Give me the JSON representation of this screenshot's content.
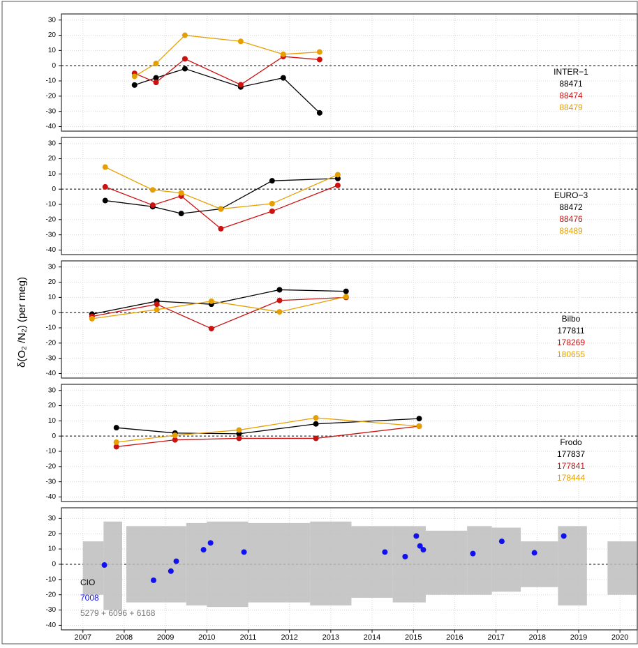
{
  "y_label": "δ(O₂ /N₂) (per meg)",
  "chart_data": [
    {
      "type": "line",
      "legend_title": "INTER−1",
      "legend": "right",
      "grid": true,
      "hline": 0,
      "xlim": [
        2006.48,
        2020.42
      ],
      "xticks": [
        2007,
        2008,
        2009,
        2010,
        2011,
        2012,
        2013,
        2014,
        2015,
        2016,
        2017,
        2018,
        2019,
        2020
      ],
      "ylim": [
        -43,
        34
      ],
      "yticks": [
        -40,
        -30,
        -20,
        -10,
        0,
        10,
        20,
        30
      ],
      "x": [
        2008.25,
        2008.77,
        2009.47,
        2010.82,
        2011.85,
        2012.73
      ],
      "series": [
        {
          "name": "88471",
          "color": "#000000",
          "values": [
            -12.7,
            -8,
            -2,
            -14,
            -8,
            -31
          ]
        },
        {
          "name": "88474",
          "color": "#cc1111",
          "values": [
            -5,
            -11,
            4.5,
            -12.5,
            6,
            4
          ]
        },
        {
          "name": "88479",
          "color": "#e69f00",
          "values": [
            -7,
            1.5,
            20,
            16,
            7.5,
            9
          ]
        }
      ]
    },
    {
      "type": "line",
      "legend_title": "EURO−3",
      "legend": "right",
      "grid": true,
      "hline": 0,
      "xlim": [
        2006.48,
        2020.42
      ],
      "xticks": [
        2007,
        2008,
        2009,
        2010,
        2011,
        2012,
        2013,
        2014,
        2015,
        2016,
        2017,
        2018,
        2019,
        2020
      ],
      "ylim": [
        -43,
        34
      ],
      "yticks": [
        -40,
        -30,
        -20,
        -10,
        0,
        10,
        20,
        30
      ],
      "x": [
        2007.54,
        2008.69,
        2009.38,
        2010.34,
        2011.58,
        2013.17
      ],
      "series": [
        {
          "name": "88472",
          "color": "#000000",
          "values": [
            -7.5,
            -11.5,
            -16,
            -13,
            5.5,
            7
          ]
        },
        {
          "name": "88476",
          "color": "#cc1111",
          "values": [
            1.5,
            -10.5,
            -4.5,
            -26,
            -14.5,
            2.5
          ]
        },
        {
          "name": "88489",
          "color": "#e69f00",
          "values": [
            14.5,
            -0.5,
            -2.5,
            -13,
            -9.5,
            9.5
          ]
        }
      ]
    },
    {
      "type": "line",
      "legend_title": "Bilbo",
      "legend": "right",
      "grid": true,
      "hline": 0,
      "xlim": [
        2006.48,
        2020.42
      ],
      "xticks": [
        2007,
        2008,
        2009,
        2010,
        2011,
        2012,
        2013,
        2014,
        2015,
        2016,
        2017,
        2018,
        2019,
        2020
      ],
      "ylim": [
        -43,
        34
      ],
      "yticks": [
        -40,
        -30,
        -20,
        -10,
        0,
        10,
        20,
        30
      ],
      "x": [
        2007.22,
        2008.79,
        2010.11,
        2011.76,
        2013.37
      ],
      "series": [
        {
          "name": "177811",
          "color": "#000000",
          "values": [
            -1,
            7.5,
            5.5,
            15,
            14
          ]
        },
        {
          "name": "178269",
          "color": "#cc1111",
          "values": [
            -2.5,
            5.5,
            -10.5,
            8,
            10
          ]
        },
        {
          "name": "180655",
          "color": "#e69f00",
          "values": [
            -4,
            2,
            7.5,
            0.5,
            10.5
          ]
        }
      ]
    },
    {
      "type": "line",
      "legend_title": "Frodo",
      "legend": "right",
      "grid": true,
      "hline": 0,
      "xlim": [
        2006.48,
        2020.42
      ],
      "xticks": [
        2007,
        2008,
        2009,
        2010,
        2011,
        2012,
        2013,
        2014,
        2015,
        2016,
        2017,
        2018,
        2019,
        2020
      ],
      "ylim": [
        -43,
        34
      ],
      "yticks": [
        -40,
        -30,
        -20,
        -10,
        0,
        10,
        20,
        30
      ],
      "x": [
        2007.81,
        2009.23,
        2010.78,
        2012.64,
        2015.14
      ],
      "series": [
        {
          "name": "177837",
          "color": "#000000",
          "values": [
            5.5,
            2,
            1.5,
            8,
            11.5
          ]
        },
        {
          "name": "177841",
          "color": "#cc1111",
          "values": [
            -7,
            -2.5,
            -1.5,
            -1.5,
            6.5
          ]
        },
        {
          "name": "178444",
          "color": "#e69f00",
          "values": [
            -4,
            0.5,
            4,
            12,
            6.5
          ]
        }
      ]
    },
    {
      "type": "scatter",
      "legend_title": "CIO",
      "legend": "bottom left",
      "grid": true,
      "hline": 0,
      "xlim": [
        2006.48,
        2020.42
      ],
      "xticks": [
        2007,
        2008,
        2009,
        2010,
        2011,
        2012,
        2013,
        2014,
        2015,
        2016,
        2017,
        2018,
        2019,
        2020
      ],
      "ylim": [
        -43,
        37
      ],
      "yticks": [
        -40,
        -30,
        -20,
        -10,
        0,
        10,
        20,
        30
      ],
      "series": [
        {
          "name": "7008",
          "color": "#1111ee",
          "x": [
            2007.52,
            2008.71,
            2009.13,
            2009.26,
            2009.92,
            2010.09,
            2010.9,
            2014.31,
            2014.8,
            2015.07,
            2015.16,
            2015.24,
            2016.44,
            2017.14,
            2017.93,
            2018.64
          ],
          "values": [
            -0.5,
            -10.5,
            -4.5,
            2,
            9.5,
            14,
            8,
            8,
            5,
            18.5,
            12,
            9.5,
            7,
            15,
            7.5,
            18.5
          ]
        },
        {
          "name": "5279 + 6096 + 6168",
          "color": "#bdbdbd",
          "x_start": [
            2007.0,
            2007.5,
            2008.05,
            2009.5,
            2010.0,
            2011.0,
            2012.5,
            2013.5,
            2014.5,
            2015.3,
            2016.3,
            2016.9,
            2017.6,
            2018.5,
            2019.7
          ],
          "x_end": [
            2007.5,
            2007.95,
            2009.5,
            2010.0,
            2011.0,
            2012.5,
            2013.5,
            2014.5,
            2015.3,
            2016.3,
            2016.9,
            2017.6,
            2018.5,
            2019.2,
            2020.4
          ],
          "low": [
            -20,
            -30,
            -25,
            -27,
            -28,
            -25,
            -27,
            -22,
            -25,
            -20,
            -20,
            -18,
            -15,
            -27,
            -20
          ],
          "high": [
            15,
            28,
            25,
            27,
            28,
            27,
            28,
            25,
            25,
            22,
            25,
            24,
            15,
            25,
            15
          ]
        }
      ]
    }
  ]
}
